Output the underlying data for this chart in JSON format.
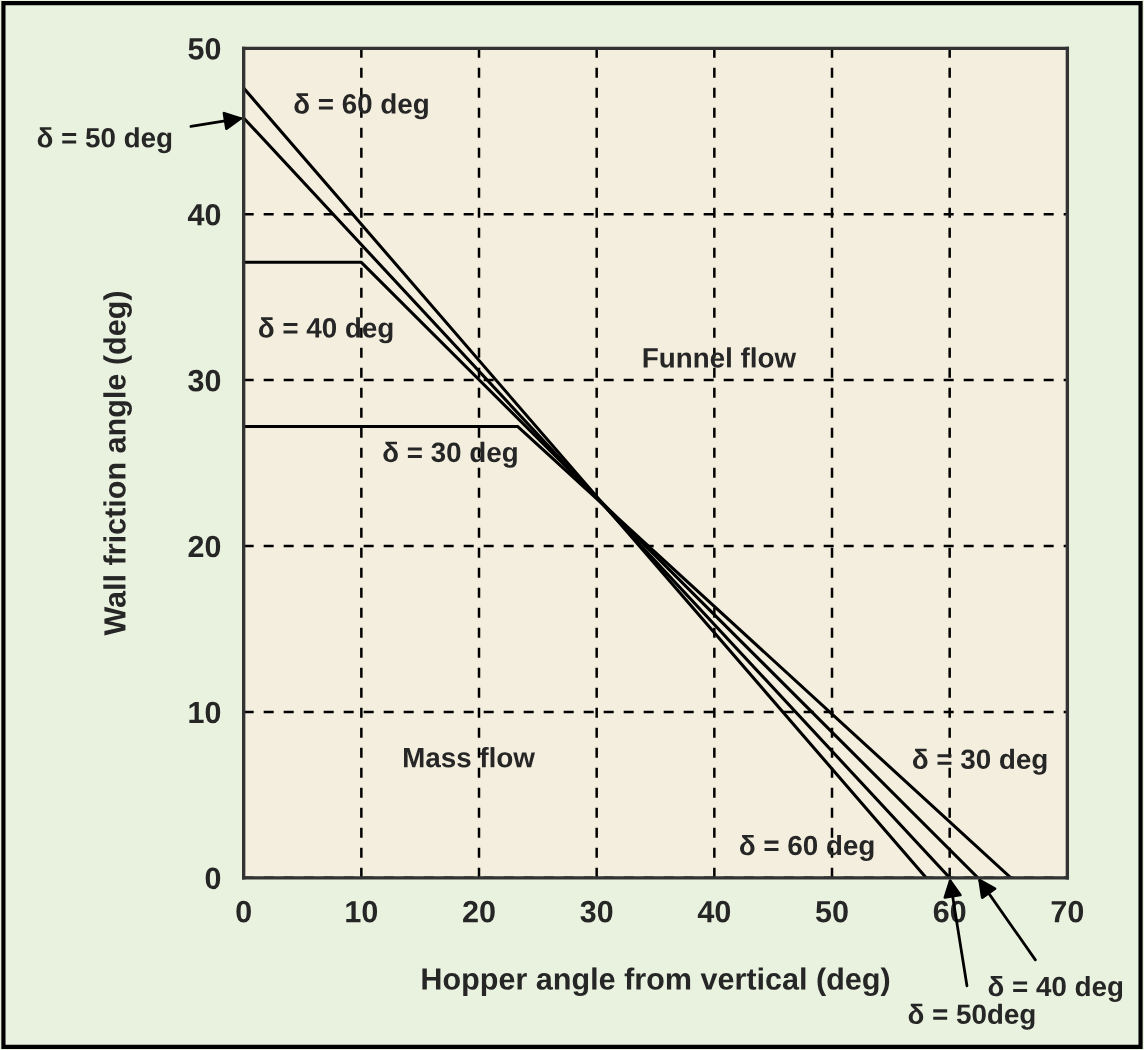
{
  "chart_data": {
    "type": "line",
    "xlabel": "Hopper angle from vertical (deg)",
    "ylabel": "Wall friction angle (deg)",
    "series": [
      {
        "color": "#000000",
        "x": [
          0,
          23.3,
          65.2
        ],
        "values": [
          27.2,
          27.2,
          0
        ]
      },
      {
        "color": "#000000",
        "x": [
          0,
          10,
          62.4
        ],
        "values": [
          37.1,
          37.1,
          0
        ]
      },
      {
        "color": "#000000",
        "x": [
          0,
          60
        ],
        "values": [
          45.8,
          0
        ]
      },
      {
        "color": "#000000",
        "x": [
          0,
          58
        ],
        "values": [
          47.6,
          0
        ]
      }
    ],
    "xlim": [
      0,
      70
    ],
    "ylim": [
      0,
      50
    ],
    "xticks": [
      0,
      10,
      20,
      30,
      40,
      50,
      60,
      70
    ],
    "yticks": [
      0,
      10,
      20,
      30,
      40,
      50
    ],
    "grid": true,
    "marker": "none",
    "line_style": "solid",
    "legend": false,
    "annotations": [
      {
        "text": "δ = 50 deg",
        "x": 0,
        "y": 45.8
      },
      "δ = 60 deg",
      "δ = 40 deg",
      "δ = 30 deg",
      "Funnel flow",
      "Mass flow",
      "δ = 30 deg",
      "δ = 60 deg",
      {
        "text": "δ = 40 deg",
        "x": 62.4,
        "y": 0
      },
      {
        "text": "δ = 50deg",
        "x": 60,
        "y": 0
      }
    ]
  }
}
